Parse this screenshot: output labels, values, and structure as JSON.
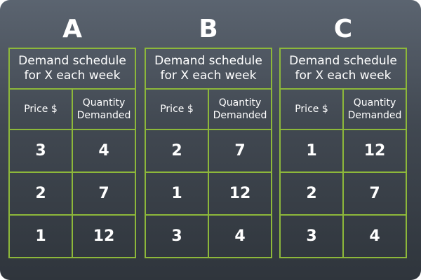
{
  "panels": [
    {
      "letter": "A",
      "caption": "Demand schedule for X each week",
      "headers": [
        "Price $",
        "Quantity Demanded"
      ],
      "rows": [
        [
          "3",
          "4"
        ],
        [
          "2",
          "7"
        ],
        [
          "1",
          "12"
        ]
      ]
    },
    {
      "letter": "B",
      "caption": "Demand schedule for X each week",
      "headers": [
        "Price $",
        "Quantity Demanded"
      ],
      "rows": [
        [
          "2",
          "7"
        ],
        [
          "1",
          "12"
        ],
        [
          "3",
          "4"
        ]
      ]
    },
    {
      "letter": "C",
      "caption": "Demand schedule for X each week",
      "headers": [
        "Price $",
        "Quantity Demanded"
      ],
      "rows": [
        [
          "1",
          "12"
        ],
        [
          "2",
          "7"
        ],
        [
          "3",
          "4"
        ]
      ]
    }
  ],
  "colors": {
    "grid_line": "#8db83a",
    "text": "#ffffff",
    "background_top": "#5b6470",
    "background_bottom": "#2f353c"
  }
}
